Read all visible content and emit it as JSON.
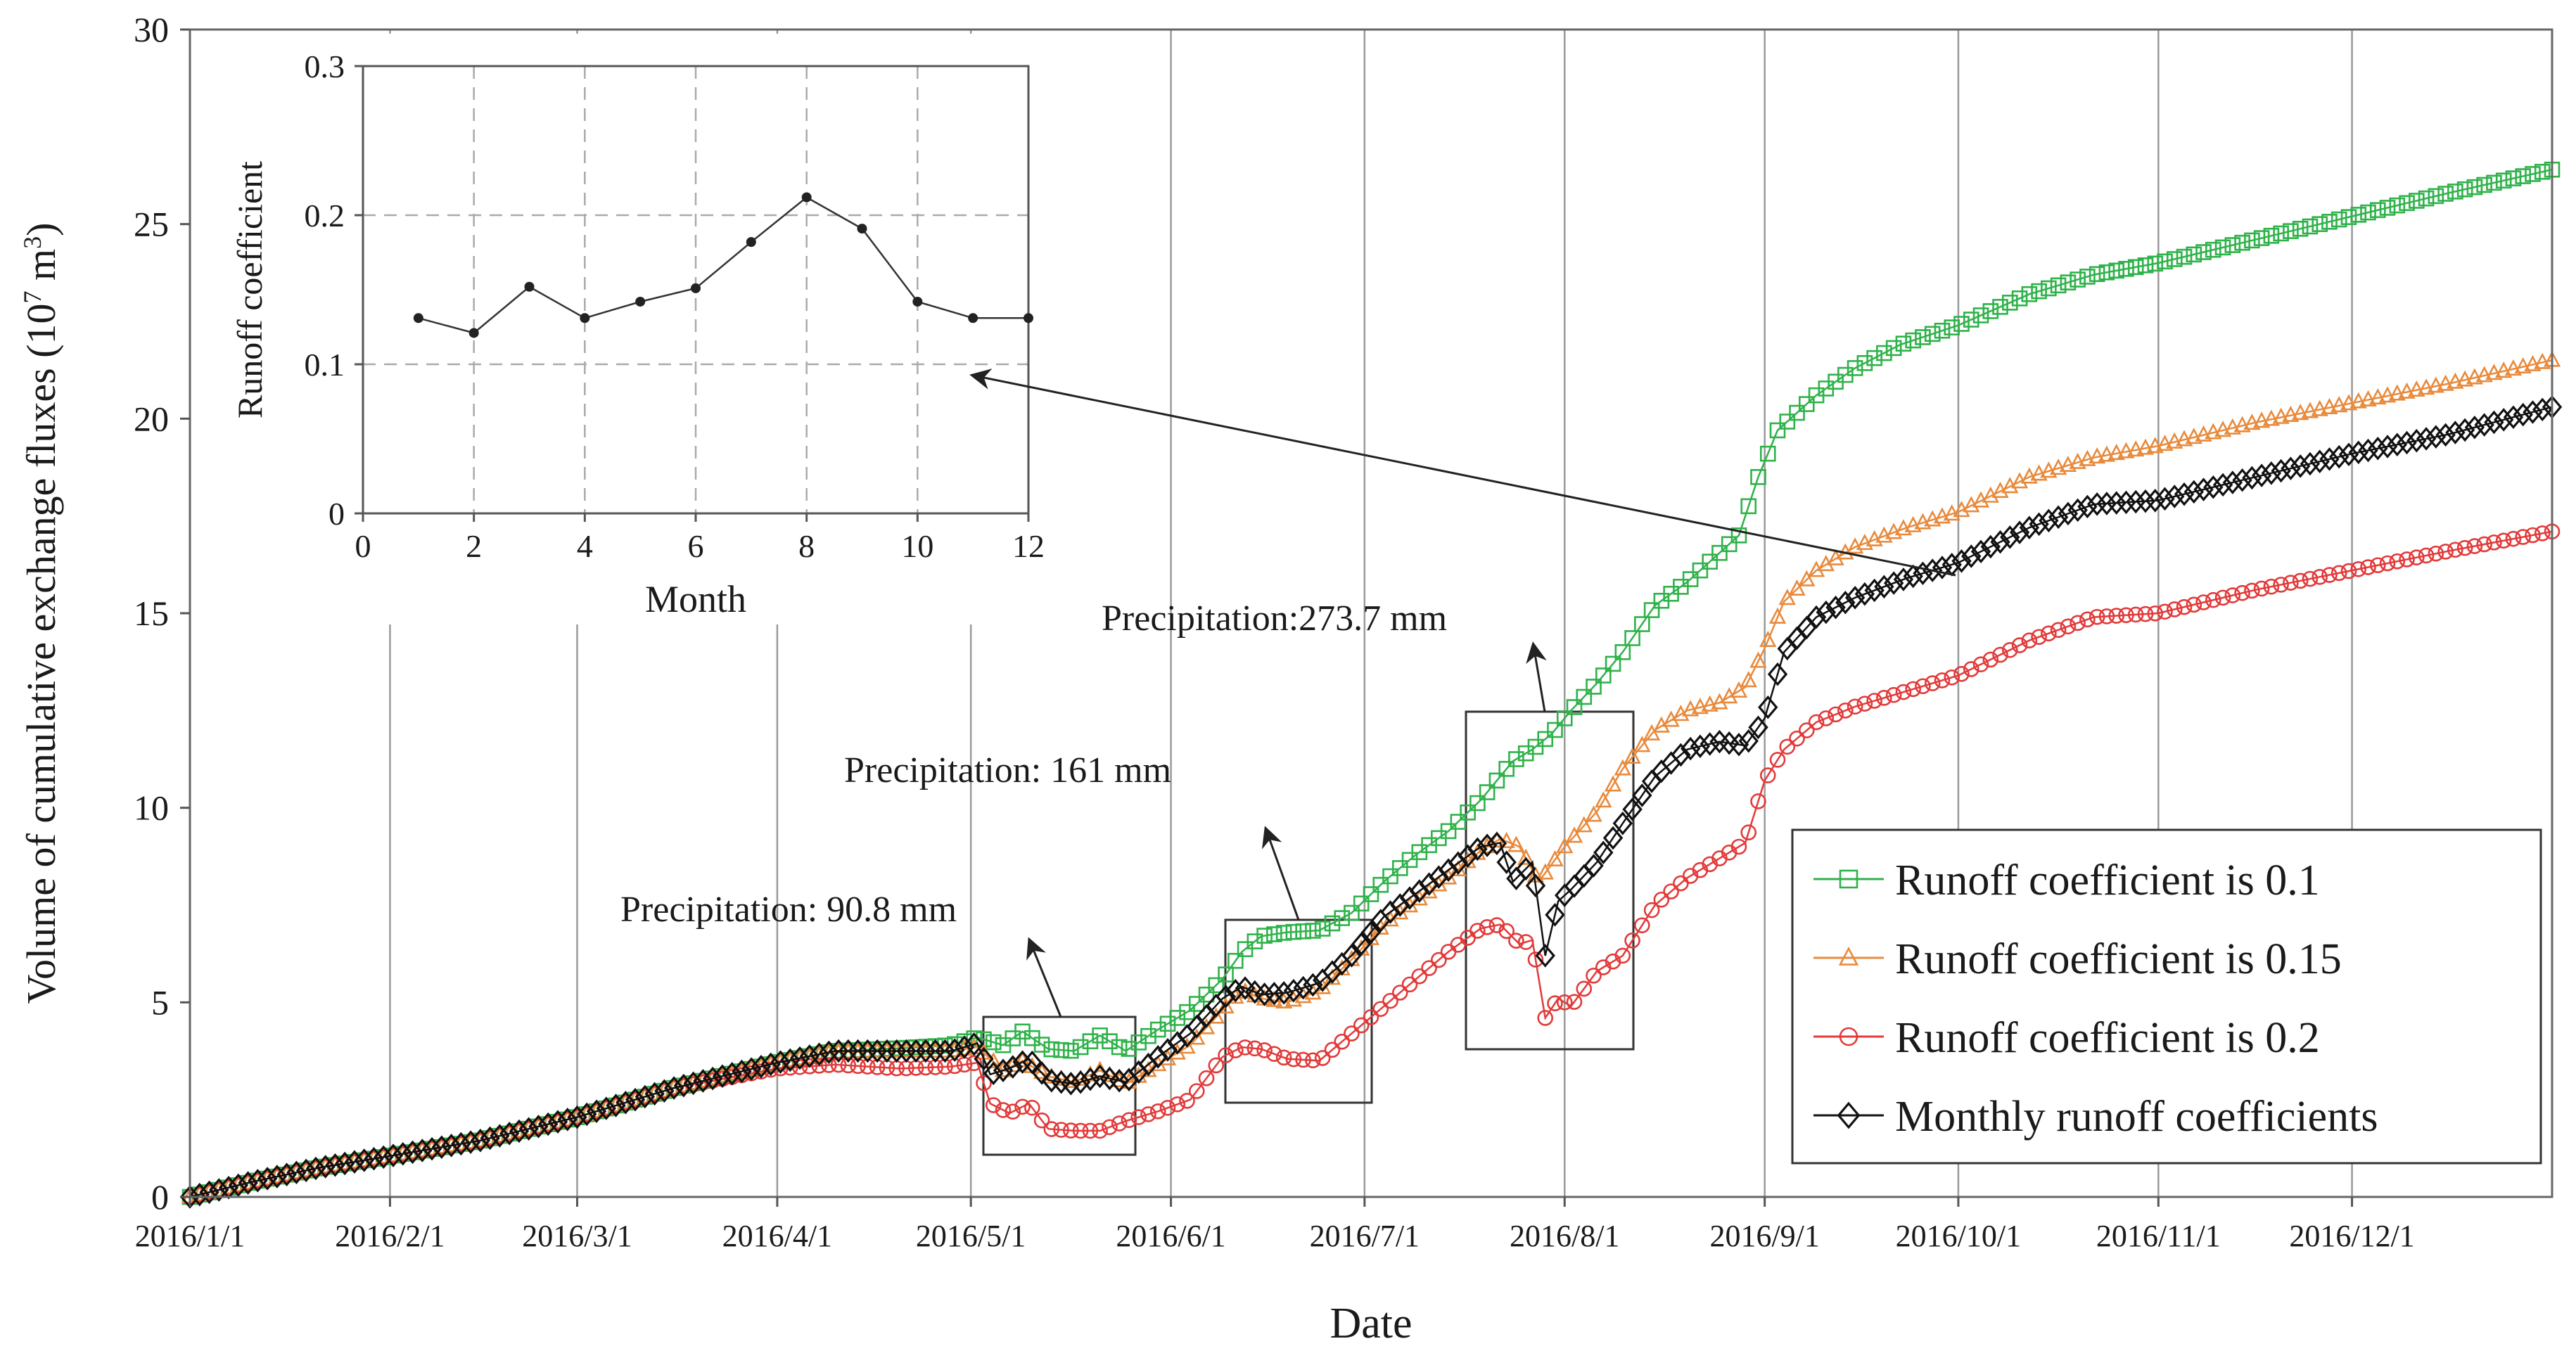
{
  "chart_data": [
    {
      "type": "line",
      "title": "",
      "xlabel": "Date",
      "ylabel": "Volume of cumulative exchange  fluxes (10",
      "ylabel_sup": "7",
      "ylabel_tail": " m",
      "ylabel_sup2": "3",
      "ylabel_end": ")",
      "xlim_days": [
        0,
        366
      ],
      "ylim": [
        0,
        30
      ],
      "yticks": [
        0,
        5,
        10,
        15,
        20,
        25,
        30
      ],
      "x_ticks": [
        {
          "day": 0,
          "label": "2016/1/1"
        },
        {
          "day": 31,
          "label": "2016/2/1"
        },
        {
          "day": 60,
          "label": "2016/3/1"
        },
        {
          "day": 91,
          "label": "2016/4/1"
        },
        {
          "day": 121,
          "label": "2016/5/1"
        },
        {
          "day": 152,
          "label": "2016/6/1"
        },
        {
          "day": 182,
          "label": "2016/7/1"
        },
        {
          "day": 213,
          "label": "2016/8/1"
        },
        {
          "day": 244,
          "label": "2016/9/1"
        },
        {
          "day": 274,
          "label": "2016/10/1"
        },
        {
          "day": 305,
          "label": "2016/11/1"
        },
        {
          "day": 335,
          "label": "2016/12/1"
        }
      ],
      "grid": "vertical",
      "legend_position": "bottom-right",
      "series": [
        {
          "name": "Runoff coefficient is 0.1",
          "color": "#2fb24a",
          "marker": "square",
          "points": [
            [
              0,
              0
            ],
            [
              10,
              0.4
            ],
            [
              20,
              0.75
            ],
            [
              31,
              1.05
            ],
            [
              45,
              1.45
            ],
            [
              60,
              2.05
            ],
            [
              75,
              2.8
            ],
            [
              91,
              3.45
            ],
            [
              100,
              3.75
            ],
            [
              110,
              3.82
            ],
            [
              118,
              3.9
            ],
            [
              122,
              4.1
            ],
            [
              126,
              3.9
            ],
            [
              129,
              4.25
            ],
            [
              133,
              3.8
            ],
            [
              137,
              3.75
            ],
            [
              141,
              4.15
            ],
            [
              145,
              3.75
            ],
            [
              150,
              4.3
            ],
            [
              155,
              4.8
            ],
            [
              160,
              5.6
            ],
            [
              163,
              6.3
            ],
            [
              166,
              6.7
            ],
            [
              170,
              6.8
            ],
            [
              175,
              6.85
            ],
            [
              180,
              7.3
            ],
            [
              185,
              8.1
            ],
            [
              190,
              8.8
            ],
            [
              195,
              9.4
            ],
            [
              200,
              10.2
            ],
            [
              205,
              11.2
            ],
            [
              208,
              11.5
            ],
            [
              211,
              11.9
            ],
            [
              214,
              12.5
            ],
            [
              218,
              13.2
            ],
            [
              222,
              14.0
            ],
            [
              227,
              15.2
            ],
            [
              232,
              15.8
            ],
            [
              236,
              16.4
            ],
            [
              240,
              17.0
            ],
            [
              243,
              18.5
            ],
            [
              246,
              19.7
            ],
            [
              252,
              20.6
            ],
            [
              258,
              21.3
            ],
            [
              265,
              21.9
            ],
            [
              274,
              22.4
            ],
            [
              285,
              23.2
            ],
            [
              295,
              23.7
            ],
            [
              305,
              24.0
            ],
            [
              320,
              24.6
            ],
            [
              335,
              25.2
            ],
            [
              350,
              25.8
            ],
            [
              366,
              26.4
            ]
          ]
        },
        {
          "name": "Runoff coefficient is 0.15",
          "color": "#e88a3c",
          "marker": "triangle",
          "points": [
            [
              0,
              0
            ],
            [
              10,
              0.4
            ],
            [
              20,
              0.75
            ],
            [
              31,
              1.05
            ],
            [
              45,
              1.45
            ],
            [
              60,
              2.05
            ],
            [
              75,
              2.8
            ],
            [
              91,
              3.45
            ],
            [
              100,
              3.72
            ],
            [
              110,
              3.75
            ],
            [
              118,
              3.75
            ],
            [
              122,
              3.85
            ],
            [
              126,
              3.25
            ],
            [
              129,
              3.5
            ],
            [
              133,
              3.1
            ],
            [
              137,
              2.95
            ],
            [
              141,
              3.25
            ],
            [
              145,
              2.9
            ],
            [
              150,
              3.4
            ],
            [
              155,
              3.9
            ],
            [
              160,
              4.8
            ],
            [
              163,
              5.3
            ],
            [
              166,
              5.1
            ],
            [
              170,
              5.0
            ],
            [
              175,
              5.3
            ],
            [
              180,
              6.1
            ],
            [
              185,
              7.0
            ],
            [
              190,
              7.6
            ],
            [
              195,
              8.2
            ],
            [
              200,
              8.9
            ],
            [
              203,
              9.2
            ],
            [
              206,
              9.0
            ],
            [
              209,
              8.1
            ],
            [
              213,
              9.0
            ],
            [
              218,
              9.9
            ],
            [
              222,
              11.0
            ],
            [
              227,
              12.0
            ],
            [
              232,
              12.5
            ],
            [
              237,
              12.7
            ],
            [
              241,
              13.1
            ],
            [
              244,
              14.1
            ],
            [
              247,
              15.3
            ],
            [
              252,
              16.1
            ],
            [
              258,
              16.7
            ],
            [
              266,
              17.2
            ],
            [
              274,
              17.6
            ],
            [
              285,
              18.5
            ],
            [
              295,
              19.0
            ],
            [
              305,
              19.3
            ],
            [
              320,
              19.9
            ],
            [
              335,
              20.4
            ],
            [
              350,
              20.9
            ],
            [
              366,
              21.5
            ]
          ]
        },
        {
          "name": "Runoff coefficient is 0.2",
          "color": "#e23a3a",
          "marker": "circle",
          "points": [
            [
              0,
              0
            ],
            [
              10,
              0.4
            ],
            [
              20,
              0.75
            ],
            [
              31,
              1.05
            ],
            [
              45,
              1.45
            ],
            [
              60,
              2.05
            ],
            [
              75,
              2.8
            ],
            [
              91,
              3.3
            ],
            [
              100,
              3.4
            ],
            [
              110,
              3.3
            ],
            [
              118,
              3.35
            ],
            [
              122,
              3.45
            ],
            [
              124,
              2.4
            ],
            [
              127,
              2.15
            ],
            [
              130,
              2.4
            ],
            [
              133,
              1.75
            ],
            [
              137,
              1.7
            ],
            [
              141,
              1.7
            ],
            [
              145,
              1.95
            ],
            [
              150,
              2.2
            ],
            [
              155,
              2.5
            ],
            [
              160,
              3.6
            ],
            [
              163,
              3.85
            ],
            [
              166,
              3.8
            ],
            [
              170,
              3.55
            ],
            [
              175,
              3.5
            ],
            [
              180,
              4.2
            ],
            [
              185,
              4.9
            ],
            [
              190,
              5.6
            ],
            [
              195,
              6.3
            ],
            [
              200,
              6.9
            ],
            [
              203,
              7.0
            ],
            [
              206,
              6.5
            ],
            [
              208,
              6.6
            ],
            [
              210,
              4.6
            ],
            [
              212,
              5.1
            ],
            [
              214,
              4.9
            ],
            [
              218,
              5.8
            ],
            [
              222,
              6.2
            ],
            [
              227,
              7.5
            ],
            [
              232,
              8.2
            ],
            [
              237,
              8.7
            ],
            [
              241,
              9.1
            ],
            [
              244,
              10.7
            ],
            [
              247,
              11.5
            ],
            [
              252,
              12.2
            ],
            [
              258,
              12.6
            ],
            [
              266,
              13.0
            ],
            [
              274,
              13.4
            ],
            [
              285,
              14.3
            ],
            [
              295,
              14.9
            ],
            [
              305,
              15.0
            ],
            [
              320,
              15.6
            ],
            [
              335,
              16.1
            ],
            [
              350,
              16.6
            ],
            [
              366,
              17.1
            ]
          ]
        },
        {
          "name": "Monthly runoff coefficients",
          "color": "#111111",
          "marker": "diamond",
          "points": [
            [
              0,
              0
            ],
            [
              10,
              0.4
            ],
            [
              20,
              0.75
            ],
            [
              31,
              1.05
            ],
            [
              45,
              1.45
            ],
            [
              60,
              2.05
            ],
            [
              75,
              2.8
            ],
            [
              91,
              3.45
            ],
            [
              100,
              3.75
            ],
            [
              110,
              3.75
            ],
            [
              118,
              3.75
            ],
            [
              122,
              3.95
            ],
            [
              124,
              3.15
            ],
            [
              127,
              3.3
            ],
            [
              130,
              3.55
            ],
            [
              133,
              3.0
            ],
            [
              137,
              2.9
            ],
            [
              141,
              3.1
            ],
            [
              145,
              2.95
            ],
            [
              150,
              3.6
            ],
            [
              155,
              4.2
            ],
            [
              160,
              5.1
            ],
            [
              163,
              5.4
            ],
            [
              166,
              5.2
            ],
            [
              170,
              5.25
            ],
            [
              175,
              5.5
            ],
            [
              180,
              6.2
            ],
            [
              185,
              7.2
            ],
            [
              190,
              7.8
            ],
            [
              195,
              8.4
            ],
            [
              200,
              9.0
            ],
            [
              203,
              9.1
            ],
            [
              205,
              8.1
            ],
            [
              208,
              8.6
            ],
            [
              210,
              6.2
            ],
            [
              212,
              7.6
            ],
            [
              214,
              7.9
            ],
            [
              218,
              8.6
            ],
            [
              222,
              9.6
            ],
            [
              227,
              10.8
            ],
            [
              232,
              11.5
            ],
            [
              237,
              11.7
            ],
            [
              241,
              11.6
            ],
            [
              244,
              12.3
            ],
            [
              247,
              14.0
            ],
            [
              252,
              14.9
            ],
            [
              258,
              15.4
            ],
            [
              266,
              15.9
            ],
            [
              274,
              16.3
            ],
            [
              285,
              17.2
            ],
            [
              295,
              17.8
            ],
            [
              305,
              17.9
            ],
            [
              320,
              18.5
            ],
            [
              335,
              19.1
            ],
            [
              350,
              19.6
            ],
            [
              366,
              20.3
            ]
          ]
        }
      ],
      "annotations": [
        {
          "text": "Precipitation: 90.8 mm"
        },
        {
          "text": "Precipitation: 161 mm"
        },
        {
          "text": "Precipitation:273.7  mm"
        }
      ]
    },
    {
      "type": "line",
      "title": "",
      "xlabel": "Month",
      "ylabel": "Runoff coefficient",
      "xlim": [
        0,
        12
      ],
      "ylim": [
        0,
        0.3
      ],
      "xticks": [
        "0",
        "2",
        "4",
        "6",
        "8",
        "10",
        "12"
      ],
      "yticks": [
        "0",
        "0.1",
        "0.2",
        "0.3"
      ],
      "grid": "dashed",
      "series": [
        {
          "name": "Monthly runoff coefficient",
          "color": "#333333",
          "x": [
            1,
            2,
            3,
            4,
            5,
            6,
            7,
            8,
            9,
            10,
            11,
            12
          ],
          "values": [
            0.131,
            0.121,
            0.152,
            0.131,
            0.142,
            0.151,
            0.182,
            0.212,
            0.191,
            0.142,
            0.131,
            0.131
          ]
        }
      ]
    }
  ]
}
